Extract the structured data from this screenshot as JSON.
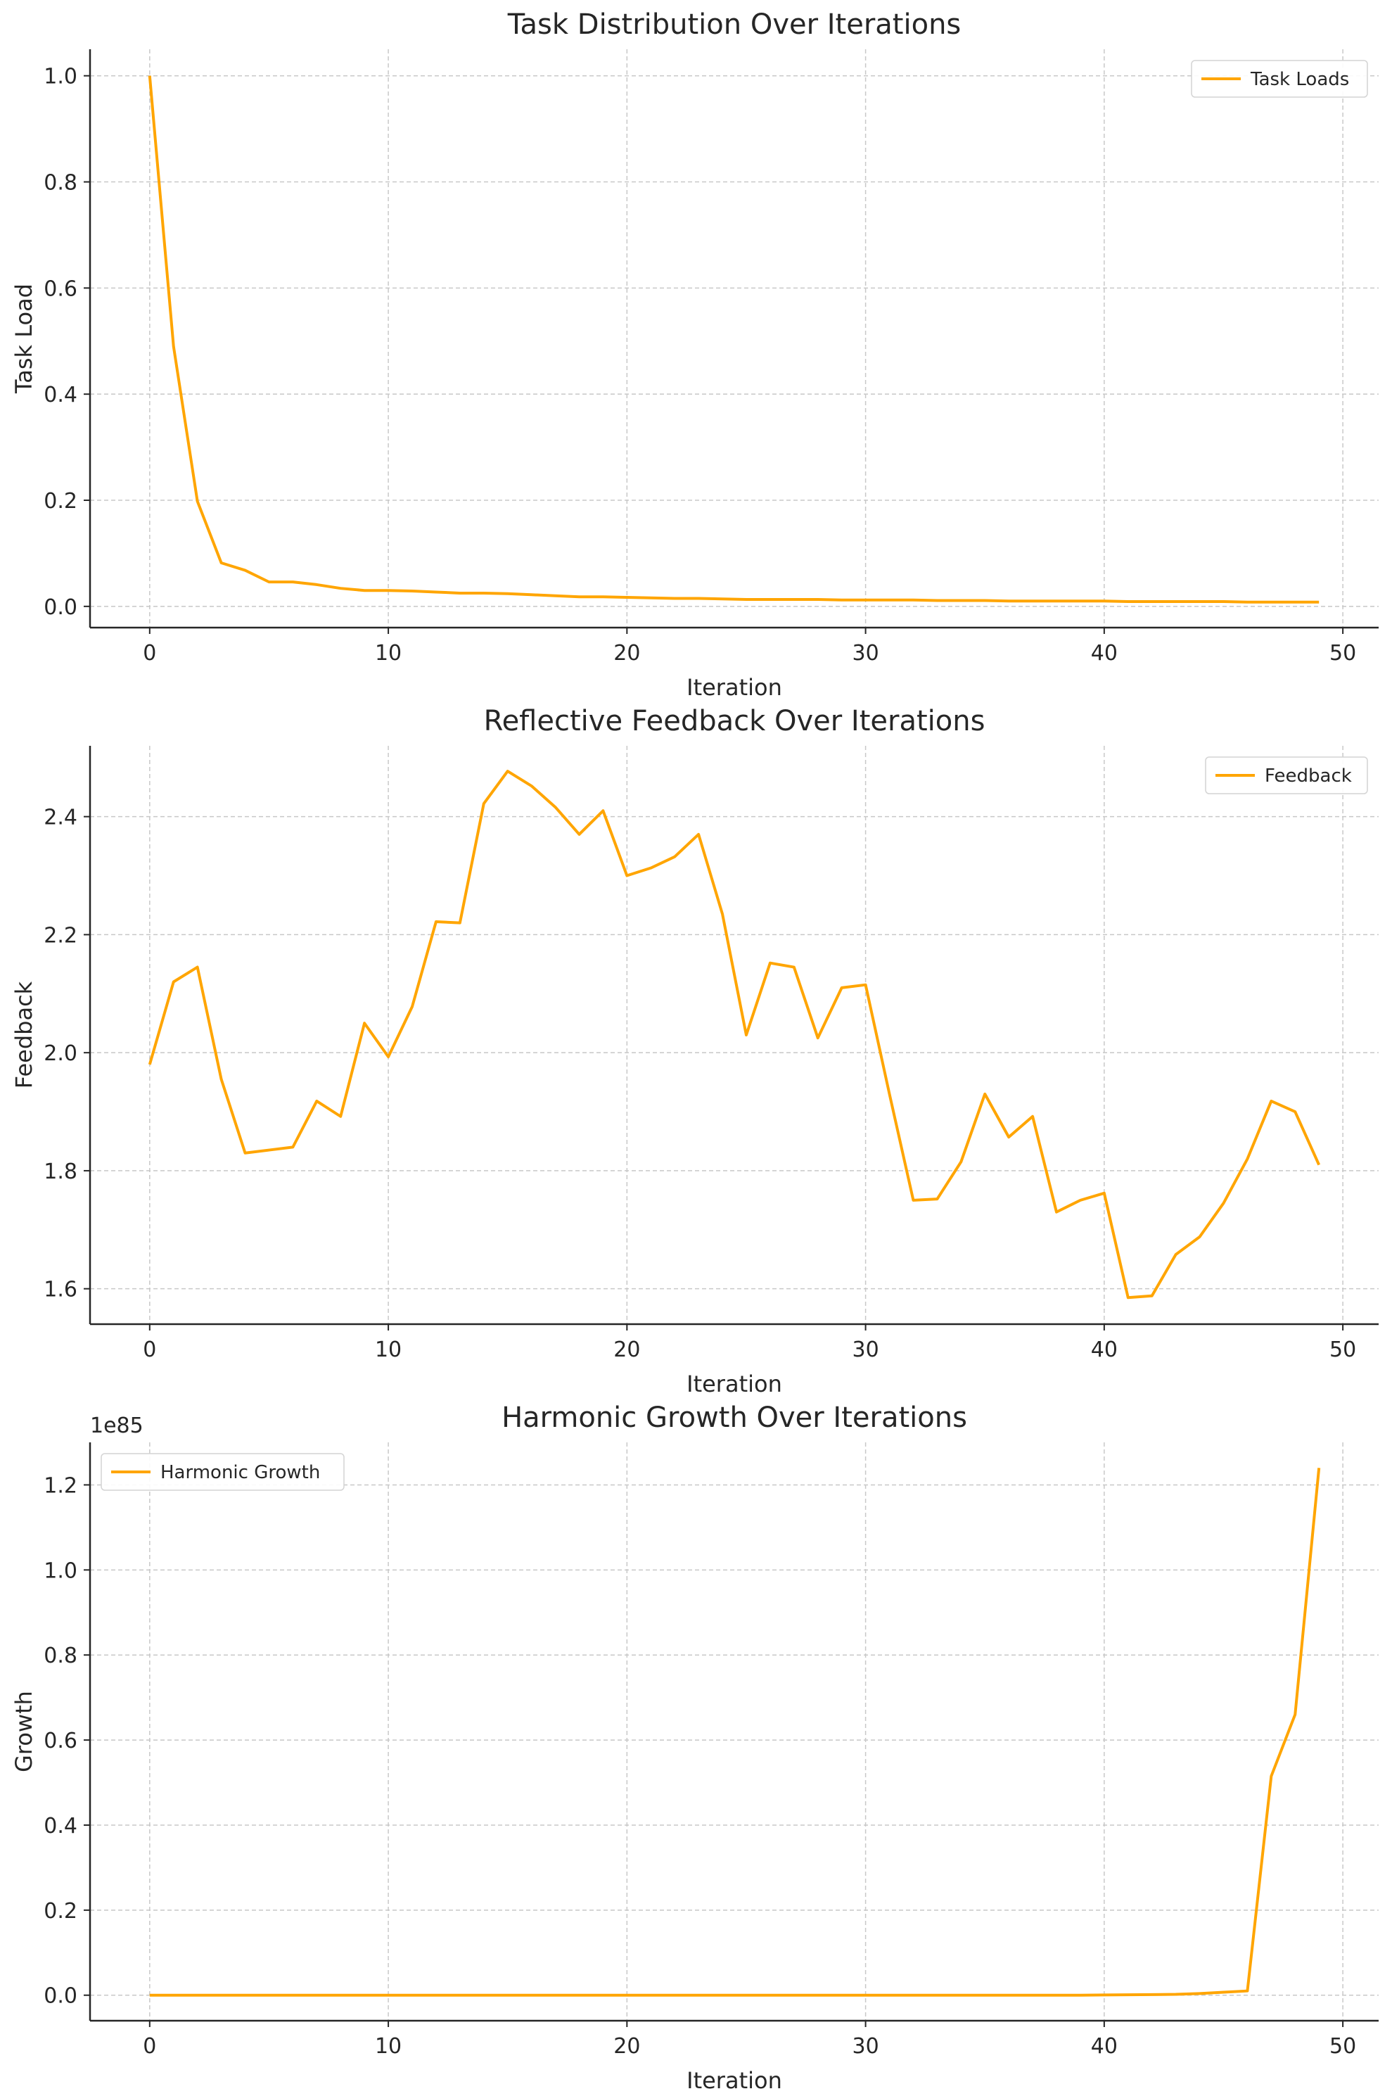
{
  "chart_data": [
    {
      "type": "line",
      "title": "Task Distribution Over Iterations",
      "xlabel": "Iteration",
      "ylabel": "Task Load",
      "xlim": [
        -2.5,
        51.5
      ],
      "ylim": [
        -0.04,
        1.05
      ],
      "xticks": [
        0,
        10,
        20,
        30,
        40,
        50
      ],
      "yticks": [
        0.0,
        0.2,
        0.4,
        0.6,
        0.8,
        1.0
      ],
      "ytick_labels": [
        "0.0",
        "0.2",
        "0.4",
        "0.6",
        "0.8",
        "1.0"
      ],
      "grid": true,
      "legend": "top-right",
      "color": "#FFA500",
      "series": [
        {
          "name": "Task Loads",
          "x": [
            0,
            1,
            2,
            3,
            4,
            5,
            6,
            7,
            8,
            9,
            10,
            11,
            12,
            13,
            14,
            15,
            16,
            17,
            18,
            19,
            20,
            21,
            22,
            23,
            24,
            25,
            26,
            27,
            28,
            29,
            30,
            31,
            32,
            33,
            34,
            35,
            36,
            37,
            38,
            39,
            40,
            41,
            42,
            43,
            44,
            45,
            46,
            47,
            48,
            49
          ],
          "values": [
            1.0,
            0.49,
            0.198,
            0.082,
            0.068,
            0.046,
            0.046,
            0.041,
            0.034,
            0.03,
            0.03,
            0.029,
            0.027,
            0.025,
            0.025,
            0.024,
            0.022,
            0.02,
            0.018,
            0.018,
            0.017,
            0.016,
            0.015,
            0.015,
            0.014,
            0.013,
            0.013,
            0.013,
            0.013,
            0.012,
            0.012,
            0.012,
            0.012,
            0.011,
            0.011,
            0.011,
            0.01,
            0.01,
            0.01,
            0.01,
            0.01,
            0.009,
            0.009,
            0.009,
            0.009,
            0.009,
            0.008,
            0.008,
            0.008,
            0.008
          ]
        }
      ]
    },
    {
      "type": "line",
      "title": "Reflective Feedback Over Iterations",
      "xlabel": "Iteration",
      "ylabel": "Feedback",
      "xlim": [
        -2.5,
        51.5
      ],
      "ylim": [
        1.54,
        2.52
      ],
      "xticks": [
        0,
        10,
        20,
        30,
        40,
        50
      ],
      "yticks": [
        1.6,
        1.8,
        2.0,
        2.2,
        2.4
      ],
      "ytick_labels": [
        "1.6",
        "1.8",
        "2.0",
        "2.2",
        "2.4"
      ],
      "grid": true,
      "legend": "top-right",
      "color": "#FFA500",
      "series": [
        {
          "name": "Feedback",
          "x": [
            0,
            1,
            2,
            3,
            4,
            5,
            6,
            7,
            8,
            9,
            10,
            11,
            12,
            13,
            14,
            15,
            16,
            17,
            18,
            19,
            20,
            21,
            22,
            23,
            24,
            25,
            26,
            27,
            28,
            29,
            30,
            31,
            32,
            33,
            34,
            35,
            36,
            37,
            38,
            39,
            40,
            41,
            42,
            43,
            44,
            45,
            46,
            47,
            48,
            49
          ],
          "values": [
            1.98,
            2.12,
            2.145,
            1.955,
            1.83,
            1.835,
            1.84,
            1.918,
            1.892,
            2.05,
            1.993,
            2.078,
            2.222,
            2.22,
            2.422,
            2.477,
            2.452,
            2.416,
            2.37,
            2.41,
            2.3,
            2.313,
            2.332,
            2.37,
            2.235,
            2.03,
            2.152,
            2.145,
            2.025,
            2.11,
            2.115,
            1.93,
            1.75,
            1.752,
            1.815,
            1.93,
            1.857,
            1.892,
            1.73,
            1.75,
            1.762,
            1.585,
            1.588,
            1.658,
            1.688,
            1.745,
            1.82,
            1.918,
            1.9,
            1.81
          ]
        }
      ]
    },
    {
      "type": "line",
      "title": "Harmonic Growth Over Iterations",
      "xlabel": "Iteration",
      "ylabel": "Growth",
      "offset_label": "1e85",
      "xlim": [
        -2.5,
        51.5
      ],
      "ylim": [
        -0.06,
        1.3
      ],
      "xticks": [
        0,
        10,
        20,
        30,
        40,
        50
      ],
      "yticks": [
        0.0,
        0.2,
        0.4,
        0.6,
        0.8,
        1.0,
        1.2
      ],
      "ytick_labels": [
        "0.0",
        "0.2",
        "0.4",
        "0.6",
        "0.8",
        "1.0",
        "1.2"
      ],
      "grid": true,
      "legend": "top-left",
      "color": "#FFA500",
      "series": [
        {
          "name": "Harmonic Growth",
          "x": [
            0,
            1,
            2,
            3,
            4,
            5,
            6,
            7,
            8,
            9,
            10,
            11,
            12,
            13,
            14,
            15,
            16,
            17,
            18,
            19,
            20,
            21,
            22,
            23,
            24,
            25,
            26,
            27,
            28,
            29,
            30,
            31,
            32,
            33,
            34,
            35,
            36,
            37,
            38,
            39,
            40,
            41,
            42,
            43,
            44,
            45,
            46,
            47,
            48,
            49
          ],
          "values": [
            0,
            0,
            0,
            0,
            0,
            0,
            0,
            0,
            0,
            0,
            0,
            0,
            0,
            0,
            0,
            0,
            0,
            0,
            0,
            0,
            0,
            0,
            0,
            0,
            0,
            0,
            0,
            0,
            0,
            0,
            0,
            0,
            0,
            0,
            0,
            0,
            0,
            0,
            0,
            0,
            0.0005,
            0.001,
            0.0015,
            0.002,
            0.004,
            0.007,
            0.01,
            0.515,
            0.66,
            1.24
          ]
        }
      ]
    }
  ]
}
